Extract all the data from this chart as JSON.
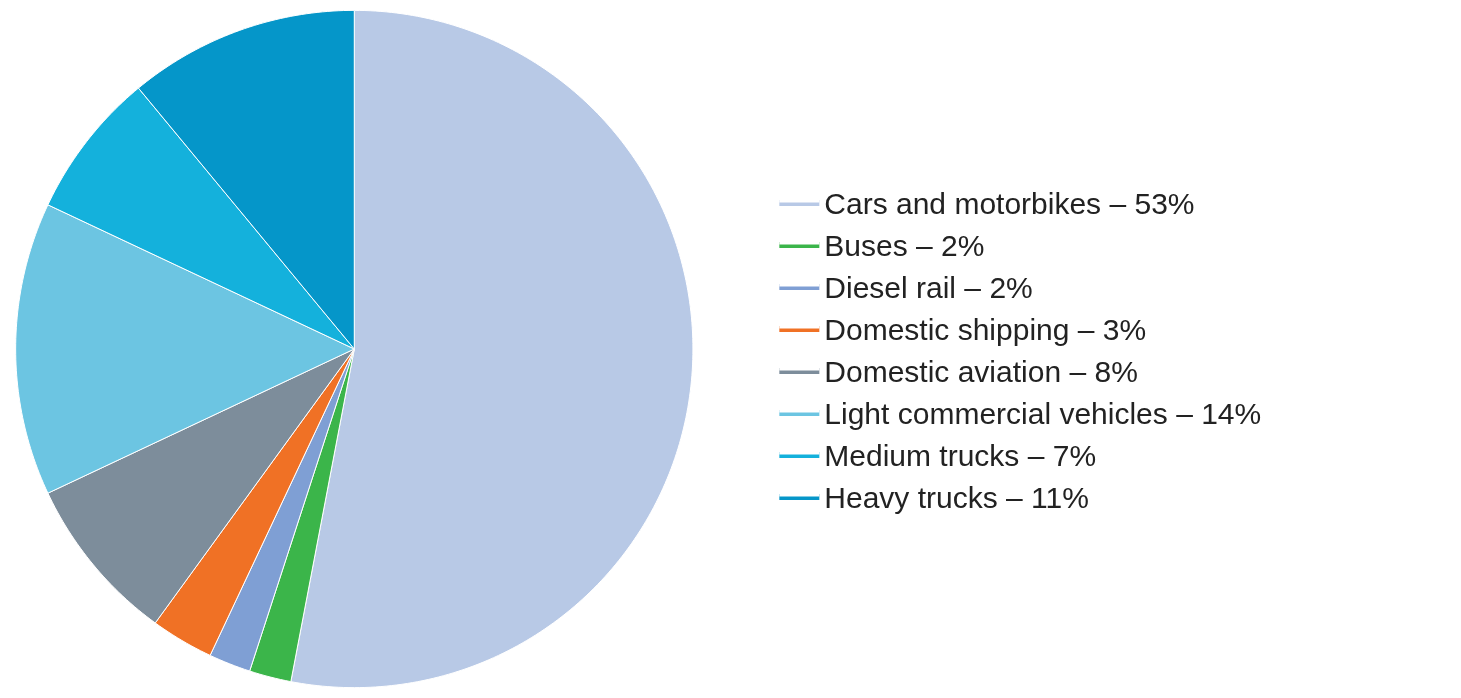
{
  "chart_data": {
    "type": "pie",
    "categories": [
      "Cars and motorbikes – 53%",
      "Buses – 2%",
      "Diesel rail – 2%",
      "Domestic shipping – 3%",
      "Domestic aviation – 8%",
      "Light commercial vehicles – 14%",
      "Medium trucks – 7%",
      "Heavy trucks – 11%"
    ],
    "values": [
      53,
      2,
      2,
      3,
      8,
      14,
      7,
      11
    ],
    "colors": [
      "#b8c9e6",
      "#3bb54a",
      "#7f9fd4",
      "#f07125",
      "#7d8d9b",
      "#6cc5e2",
      "#14b1dc",
      "#0596c9"
    ],
    "legend": "right"
  }
}
